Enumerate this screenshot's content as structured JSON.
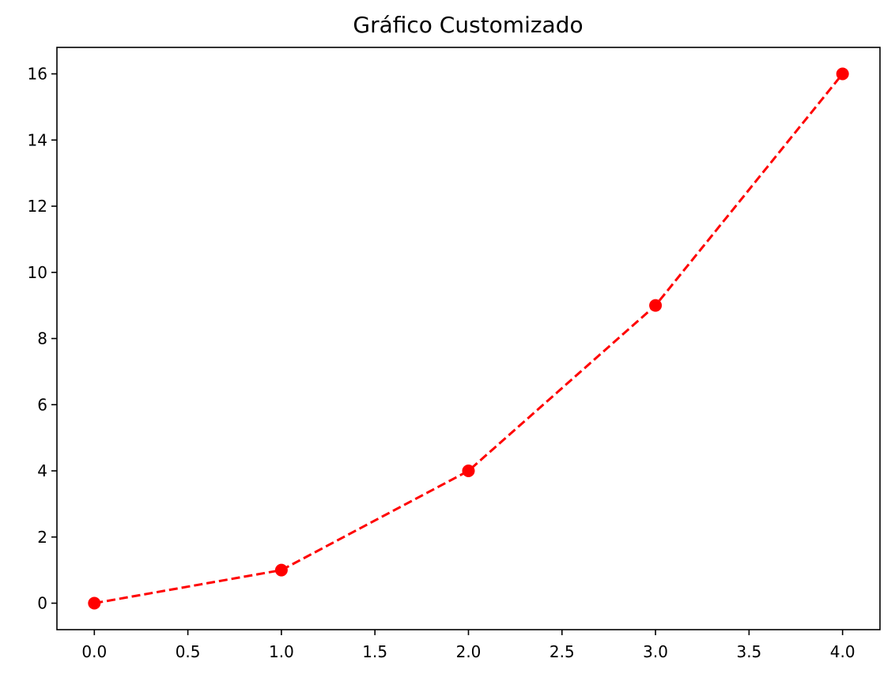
{
  "chart_data": {
    "type": "line",
    "title": "Gráfico Customizado",
    "xlabel": "",
    "ylabel": "",
    "x": [
      0,
      1,
      2,
      3,
      4
    ],
    "series": [
      {
        "values": [
          0,
          1,
          4,
          9,
          16
        ],
        "color": "#ff0000",
        "line_style": "dashed",
        "marker": "circle"
      }
    ],
    "xlim": [
      -0.2,
      4.2
    ],
    "ylim": [
      -0.8,
      16.8
    ],
    "xticks": [
      0.0,
      0.5,
      1.0,
      1.5,
      2.0,
      2.5,
      3.0,
      3.5,
      4.0
    ],
    "xtick_labels": [
      "0.0",
      "0.5",
      "1.0",
      "1.5",
      "2.0",
      "2.5",
      "3.0",
      "3.5",
      "4.0"
    ],
    "yticks": [
      0,
      2,
      4,
      6,
      8,
      10,
      12,
      14,
      16
    ],
    "ytick_labels": [
      "0",
      "2",
      "4",
      "6",
      "8",
      "10",
      "12",
      "14",
      "16"
    ],
    "grid": false,
    "legend": null
  }
}
